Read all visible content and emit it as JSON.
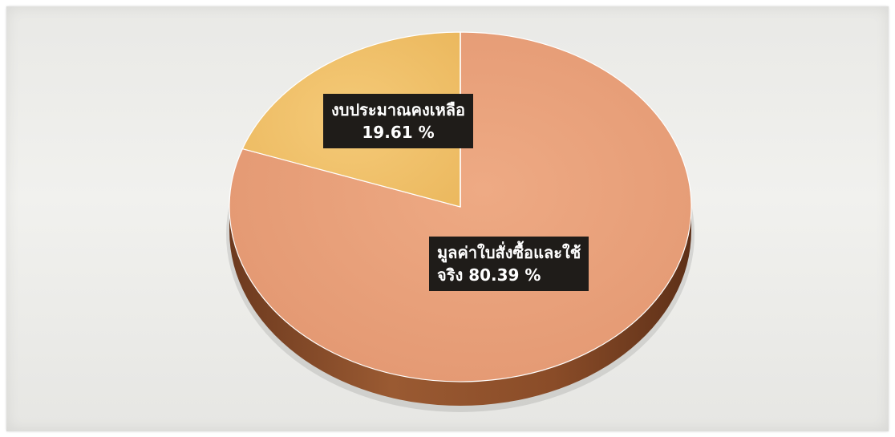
{
  "chart_data": {
    "type": "pie",
    "style": "3d",
    "slices": [
      {
        "label_line1": "มูลค่าใบสั่งซื้อและใช้",
        "label_line2": "จริง  80.39  %",
        "value": 80.39,
        "color": "#e9a07a"
      },
      {
        "label_line1": "งบประมาณคงเหลือ",
        "label_line2": "19.61 %",
        "value": 19.61,
        "color": "#f2c269"
      }
    ]
  },
  "colors": {
    "used_side": "#8a4e2a",
    "remaining_side": "#b98a3a",
    "label_background": "#1f1c19",
    "panel_background": "#ececea"
  }
}
